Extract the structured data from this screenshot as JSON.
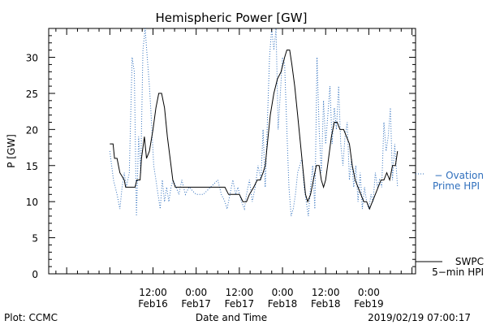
{
  "chart_data": {
    "type": "line",
    "title": "Hemispheric Power [GW]",
    "ylabel": "P [GW]",
    "xlabel": "Date and Time",
    "ylim": [
      0,
      34
    ],
    "xlim": [
      -17,
      85
    ],
    "x_unit": "hours since 2019-02-16 00:00",
    "yticks": [
      0,
      5,
      10,
      15,
      20,
      25,
      30
    ],
    "xticks": [
      {
        "x": 12,
        "time": "12:00",
        "date": "Feb16"
      },
      {
        "x": 24,
        "time": "0:00",
        "date": "Feb17"
      },
      {
        "x": 36,
        "time": "12:00",
        "date": "Feb17"
      },
      {
        "x": 48,
        "time": "0:00",
        "date": "Feb18"
      },
      {
        "x": 60,
        "time": "12:00",
        "date": "Feb18"
      },
      {
        "x": 72,
        "time": "0:00",
        "date": "Feb19"
      }
    ],
    "series": [
      {
        "name": "SWPC",
        "color": "#000000",
        "style": "solid",
        "points": [
          [
            0,
            18
          ],
          [
            0.9,
            18
          ],
          [
            1.3,
            16
          ],
          [
            2,
            16
          ],
          [
            2.8,
            14
          ],
          [
            4,
            13
          ],
          [
            4.4,
            12
          ],
          [
            7,
            12
          ],
          [
            7.5,
            13
          ],
          [
            8.4,
            13
          ],
          [
            8.8,
            16
          ],
          [
            9.6,
            19
          ],
          [
            10.2,
            16
          ],
          [
            11,
            17
          ],
          [
            12,
            20
          ],
          [
            12.8,
            23
          ],
          [
            13.6,
            25
          ],
          [
            14.4,
            25
          ],
          [
            15.2,
            23
          ],
          [
            16,
            19
          ],
          [
            17,
            15
          ],
          [
            17.5,
            13
          ],
          [
            18.2,
            12
          ],
          [
            20,
            12
          ],
          [
            25,
            12
          ],
          [
            30,
            12
          ],
          [
            32,
            12
          ],
          [
            33,
            11
          ],
          [
            35,
            11
          ],
          [
            36,
            11
          ],
          [
            37,
            10
          ],
          [
            38,
            10
          ],
          [
            38.8,
            11
          ],
          [
            40,
            12
          ],
          [
            41,
            13
          ],
          [
            41.8,
            13
          ],
          [
            42.6,
            14
          ],
          [
            43.2,
            15
          ],
          [
            43.8,
            18
          ],
          [
            44.6,
            22
          ],
          [
            45.6,
            25
          ],
          [
            46.6,
            27
          ],
          [
            47.6,
            28
          ],
          [
            48.6,
            30
          ],
          [
            49.2,
            31
          ],
          [
            50,
            31
          ],
          [
            50.6,
            29
          ],
          [
            51.4,
            26
          ],
          [
            52.2,
            22
          ],
          [
            53,
            18
          ],
          [
            53.8,
            14
          ],
          [
            54.4,
            11
          ],
          [
            55,
            10
          ],
          [
            55.8,
            11
          ],
          [
            56.6,
            13
          ],
          [
            57.4,
            15
          ],
          [
            58.2,
            15
          ],
          [
            58.8,
            13
          ],
          [
            59.4,
            12
          ],
          [
            60,
            13
          ],
          [
            60.8,
            16
          ],
          [
            61.6,
            19
          ],
          [
            62.4,
            21
          ],
          [
            63.2,
            21
          ],
          [
            64,
            20
          ],
          [
            65,
            20
          ],
          [
            65.8,
            19
          ],
          [
            66.6,
            18
          ],
          [
            67.4,
            15
          ],
          [
            68.2,
            13
          ],
          [
            69,
            12
          ],
          [
            69.8,
            11
          ],
          [
            70.6,
            10
          ],
          [
            71.4,
            10
          ],
          [
            72.2,
            9
          ],
          [
            73,
            10
          ],
          [
            73.8,
            11
          ],
          [
            74.6,
            12
          ],
          [
            75.4,
            13
          ],
          [
            76.2,
            13
          ],
          [
            77,
            14
          ],
          [
            77.8,
            13
          ],
          [
            78.6,
            15
          ],
          [
            79.4,
            15
          ],
          [
            80,
            17
          ]
        ]
      },
      {
        "name": "Ovation Prime HPI",
        "color": "#2f6fbd",
        "style": "dotted",
        "points": [
          [
            0,
            17
          ],
          [
            1,
            13
          ],
          [
            2,
            11
          ],
          [
            2.8,
            9
          ],
          [
            3.4,
            12
          ],
          [
            4,
            14
          ],
          [
            4.6,
            12
          ],
          [
            5.4,
            14
          ],
          [
            6.2,
            30
          ],
          [
            6.8,
            28
          ],
          [
            7.4,
            8
          ],
          [
            8,
            19
          ],
          [
            8.6,
            14
          ],
          [
            9.2,
            31
          ],
          [
            9.8,
            34
          ],
          [
            10.4,
            30
          ],
          [
            11,
            26
          ],
          [
            11.6,
            21
          ],
          [
            12.2,
            15
          ],
          [
            12.8,
            13
          ],
          [
            13.4,
            11
          ],
          [
            14,
            9
          ],
          [
            14.6,
            13
          ],
          [
            15.2,
            10
          ],
          [
            15.8,
            12
          ],
          [
            16.4,
            10
          ],
          [
            17,
            12
          ],
          [
            17.6,
            13
          ],
          [
            18.4,
            12
          ],
          [
            19.2,
            11
          ],
          [
            20,
            13
          ],
          [
            21,
            11
          ],
          [
            22,
            12
          ],
          [
            24,
            11
          ],
          [
            26,
            11
          ],
          [
            28,
            12
          ],
          [
            30,
            13
          ],
          [
            31,
            11
          ],
          [
            32,
            10
          ],
          [
            32.6,
            9
          ],
          [
            33.4,
            11
          ],
          [
            34.2,
            13
          ],
          [
            35,
            11
          ],
          [
            35.6,
            12
          ],
          [
            36.6,
            10
          ],
          [
            37.4,
            9
          ],
          [
            38,
            11
          ],
          [
            38.8,
            13
          ],
          [
            39.6,
            10
          ],
          [
            40.4,
            12
          ],
          [
            41.2,
            15
          ],
          [
            42,
            13
          ],
          [
            42.6,
            20
          ],
          [
            43.2,
            12
          ],
          [
            43.8,
            21
          ],
          [
            44.4,
            30
          ],
          [
            45,
            34
          ],
          [
            45.6,
            31
          ],
          [
            46.2,
            34
          ],
          [
            46.8,
            20
          ],
          [
            47.4,
            25
          ],
          [
            48,
            30
          ],
          [
            48.6,
            29
          ],
          [
            49.2,
            20
          ],
          [
            49.8,
            12
          ],
          [
            50.4,
            8
          ],
          [
            51,
            9
          ],
          [
            51.6,
            11
          ],
          [
            52.2,
            14
          ],
          [
            52.8,
            15
          ],
          [
            53.4,
            16
          ],
          [
            54,
            12
          ],
          [
            54.6,
            10
          ],
          [
            55.2,
            8
          ],
          [
            55.8,
            12
          ],
          [
            56.4,
            15
          ],
          [
            57,
            9
          ],
          [
            57.6,
            30
          ],
          [
            58.2,
            20
          ],
          [
            58.8,
            14
          ],
          [
            59.4,
            24
          ],
          [
            60,
            18
          ],
          [
            60.6,
            22
          ],
          [
            61.2,
            26
          ],
          [
            61.8,
            18
          ],
          [
            62.4,
            23
          ],
          [
            63,
            20
          ],
          [
            63.6,
            26
          ],
          [
            64.2,
            18
          ],
          [
            64.8,
            15
          ],
          [
            65.4,
            19
          ],
          [
            66,
            21
          ],
          [
            66.6,
            13
          ],
          [
            67.2,
            16
          ],
          [
            67.8,
            12
          ],
          [
            68.4,
            15
          ],
          [
            69,
            10
          ],
          [
            69.6,
            14
          ],
          [
            70.2,
            9
          ],
          [
            70.8,
            12
          ],
          [
            71.4,
            10
          ],
          [
            72,
            9
          ],
          [
            72.6,
            11
          ],
          [
            73.2,
            10
          ],
          [
            73.8,
            14
          ],
          [
            74.4,
            12
          ],
          [
            75,
            13
          ],
          [
            75.6,
            12
          ],
          [
            76.2,
            21
          ],
          [
            76.8,
            17
          ],
          [
            77.4,
            19
          ],
          [
            78,
            23
          ],
          [
            78.6,
            13
          ],
          [
            79.2,
            18
          ],
          [
            80,
            12
          ]
        ]
      }
    ],
    "legend": [
      {
        "label": "SWPC",
        "sublabel": "5−min HPI",
        "color": "#000000",
        "style": "solid"
      },
      {
        "label": "− Ovation",
        "sublabel": "Prime HPI",
        "color": "#2f6fbd",
        "style": "dotted"
      }
    ],
    "legend_position": "right",
    "grid": false
  },
  "footer": {
    "left": "Plot: CCMC",
    "center": "Date and Time",
    "right": "2019/02/19 07:00:17"
  }
}
